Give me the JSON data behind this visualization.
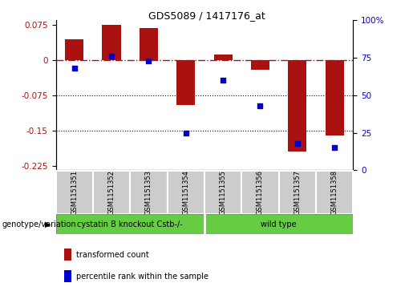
{
  "title": "GDS5089 / 1417176_at",
  "samples": [
    "GSM1151351",
    "GSM1151352",
    "GSM1151353",
    "GSM1151354",
    "GSM1151355",
    "GSM1151356",
    "GSM1151357",
    "GSM1151358"
  ],
  "red_values": [
    0.045,
    0.075,
    0.068,
    -0.095,
    0.012,
    -0.02,
    -0.195,
    -0.16
  ],
  "blue_values": [
    68,
    76,
    73,
    25,
    60,
    43,
    18,
    15
  ],
  "group1_label": "cystatin B knockout Cstb-/-",
  "group2_label": "wild type",
  "group1_indices": [
    0,
    1,
    2,
    3
  ],
  "group2_indices": [
    4,
    5,
    6,
    7
  ],
  "genotype_label": "genotype/variation",
  "legend1": "transformed count",
  "legend2": "percentile rank within the sample",
  "red_color": "#AA1111",
  "blue_color": "#0000CC",
  "green_color": "#66CC44",
  "gray_color": "#CCCCCC",
  "ylim_left": [
    -0.235,
    0.085
  ],
  "ylim_right": [
    0,
    100
  ],
  "yticks_left": [
    0.075,
    0,
    -0.075,
    -0.15,
    -0.225
  ],
  "yticks_right": [
    100,
    75,
    50,
    25,
    0
  ],
  "hline_y": 0,
  "dotted_lines": [
    -0.075,
    -0.15
  ],
  "bar_width": 0.5
}
